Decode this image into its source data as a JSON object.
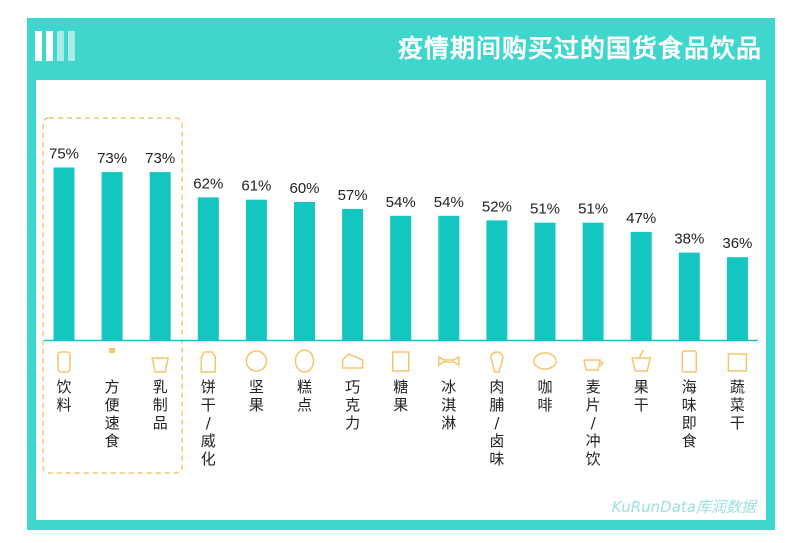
{
  "header": {
    "title": "疫情期间购买过的国货食品饮品"
  },
  "watermark": "KuRunData库润数据",
  "colors": {
    "frame": "#3fd6cd",
    "bar": "#13c6bf",
    "icon": "#f6c56a",
    "highlight_border": "#f3c56d",
    "text": "#222222"
  },
  "icons": [
    "bottle-icon",
    "noodle-cup-icon",
    "milk-carton-icon",
    "cookie-icon",
    "nut-icon",
    "cake-icon",
    "chocolate-icon",
    "candy-icon",
    "ice-cream-icon",
    "meat-icon",
    "coffee-cup-icon",
    "cereal-bowl-icon",
    "fruit-juice-icon",
    "seafood-can-icon",
    "vegetable-jar-icon"
  ],
  "chart_data": {
    "type": "bar",
    "title": "疫情期间购买过的国货食品饮品",
    "categories": [
      "饮料",
      "方便速食",
      "乳制品",
      "饼干/威化",
      "坚果",
      "糕点",
      "巧克力",
      "糖果",
      "冰淇淋",
      "肉脯/卤味",
      "咖啡",
      "麦片/冲饮",
      "果干",
      "海味即食",
      "蔬菜干"
    ],
    "values": [
      75,
      73,
      73,
      62,
      61,
      60,
      57,
      54,
      54,
      52,
      51,
      51,
      47,
      38,
      36
    ],
    "value_labels": [
      "75%",
      "73%",
      "73%",
      "62%",
      "61%",
      "60%",
      "57%",
      "54%",
      "54%",
      "52%",
      "51%",
      "51%",
      "47%",
      "38%",
      "36%"
    ],
    "unit": "%",
    "ylim": [
      0,
      100
    ],
    "grid": false,
    "highlighted_categories": [
      "饮料",
      "方便速食",
      "乳制品"
    ]
  }
}
